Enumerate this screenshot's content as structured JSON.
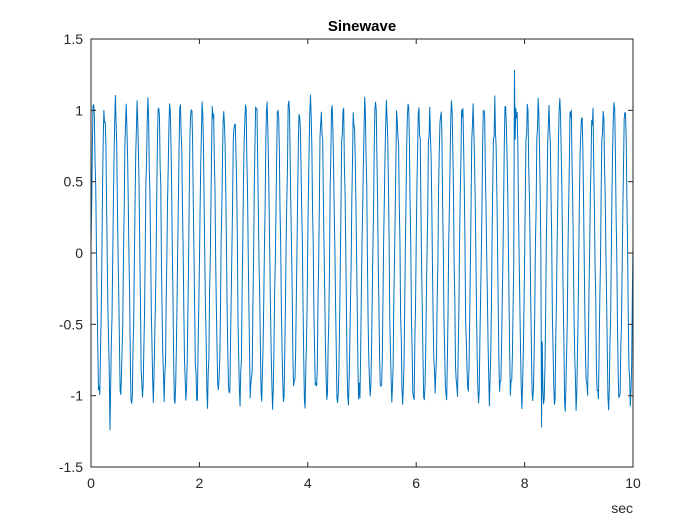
{
  "chart_data": {
    "type": "line",
    "title": "Sinewave",
    "xlabel": "sec",
    "ylabel": "",
    "xlim": [
      0,
      10
    ],
    "ylim": [
      -1.5,
      1.5
    ],
    "xticks": [
      0,
      2,
      4,
      6,
      8,
      10
    ],
    "xtick_labels": [
      "0",
      "2",
      "4",
      "6",
      "8",
      "10"
    ],
    "yticks": [
      -1.5,
      -1,
      -0.5,
      0,
      0.5,
      1,
      1.5
    ],
    "ytick_labels": [
      "-1.5",
      "-1",
      "-0.5",
      "0",
      "0.5",
      "1",
      "1.5"
    ],
    "grid": false,
    "line_color": "#0072BD",
    "series": [
      {
        "frequency_hz": 5,
        "amplitude": 1,
        "noise": "approx. ±0.1 random",
        "x_start": 0,
        "x_end": 10,
        "start_value": 0.05,
        "end_value": 0.07,
        "notable_values": [
          {
            "x": 7.8,
            "y": 1.28
          },
          {
            "x": 0.35,
            "y": -1.24
          },
          {
            "x": 8.3,
            "y": -1.22
          }
        ]
      }
    ]
  }
}
